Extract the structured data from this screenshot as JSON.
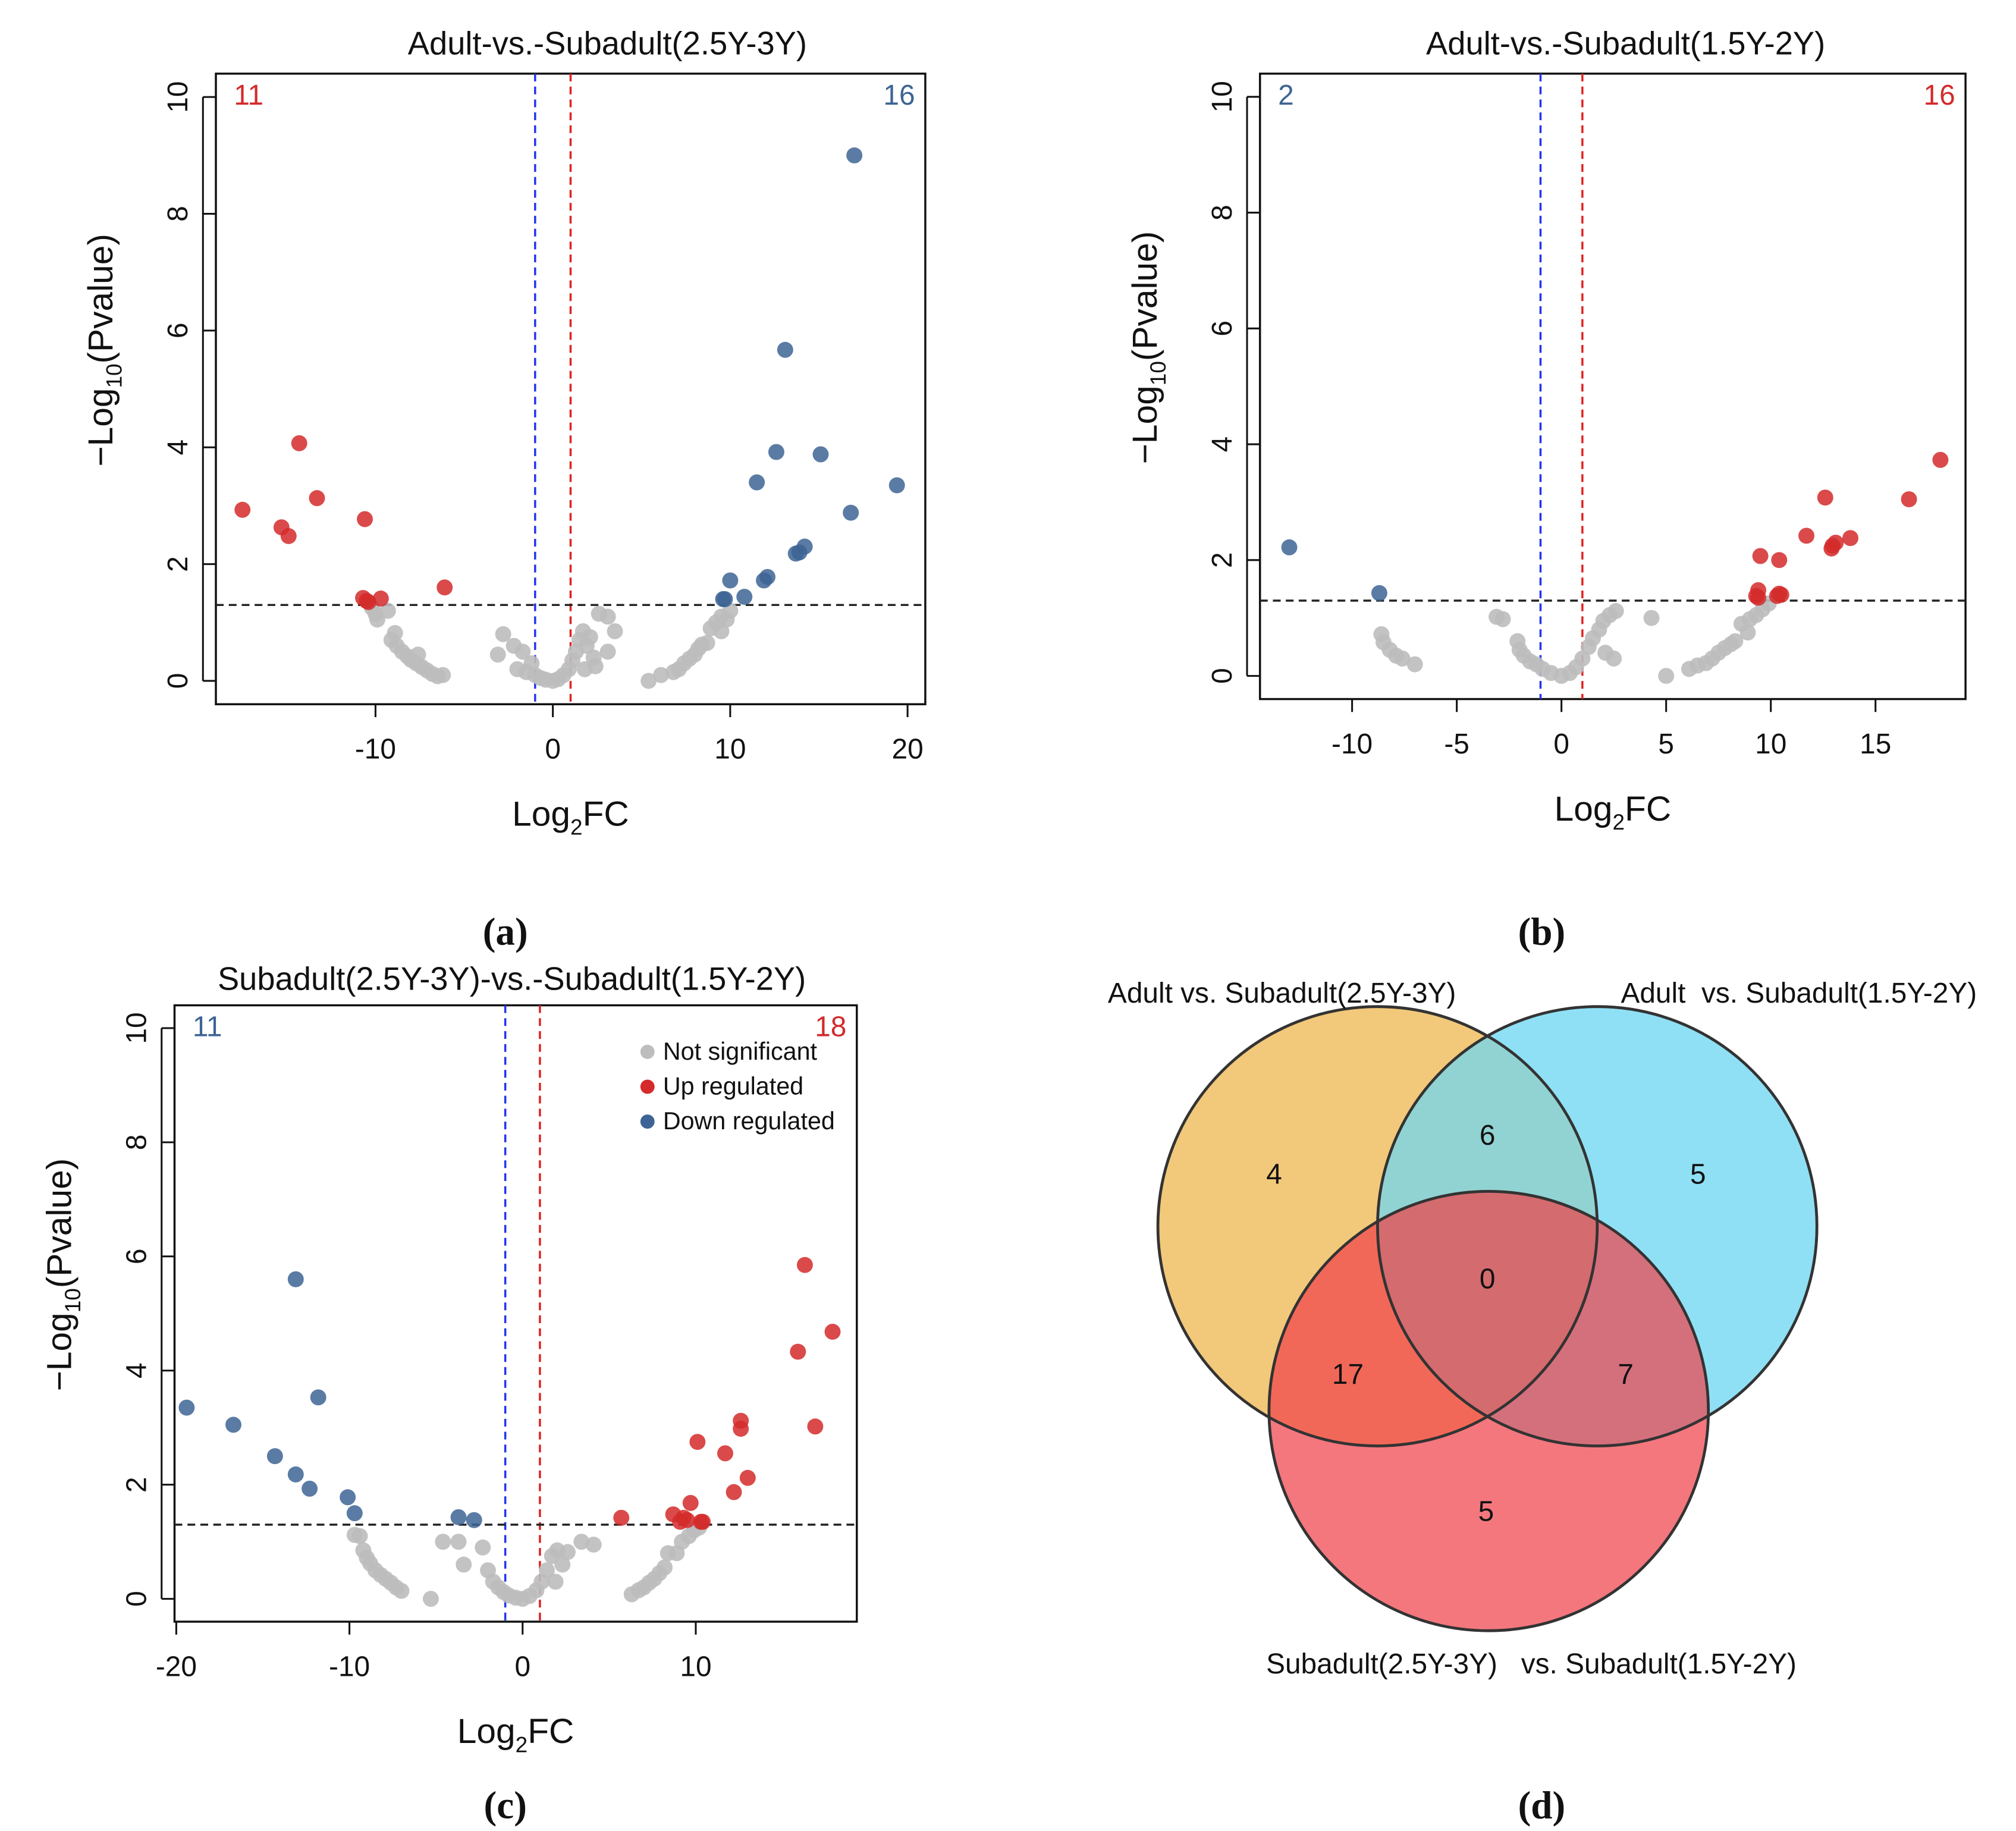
{
  "panel_labels": [
    "(a)",
    "(b)",
    "(c)",
    "(d)"
  ],
  "colors": {
    "up": "#d42a2a",
    "down": "#3d6494",
    "ns": "#bdbdbd",
    "vline_neg": "#2233ee",
    "vline_pos": "#e02020"
  },
  "chart_data": [
    {
      "type": "scatter",
      "title": "Adult-vs.-Subadult(2.5Y-3Y)",
      "xlabel": "Log2FC",
      "ylabel": "-Log10(Pvalue)",
      "xlim": [
        -19,
        21
      ],
      "ylim": [
        -0.4,
        10.4
      ],
      "xticks": [
        -10,
        0,
        10,
        20
      ],
      "yticks": [
        0,
        2,
        4,
        6,
        8,
        10
      ],
      "thresholds": {
        "log2fc": [
          -1,
          1
        ],
        "neglog10p": 1.3
      },
      "count_left": {
        "text": "11",
        "color": "#d42a2a"
      },
      "count_right": {
        "text": "16",
        "color": "#3d6494"
      },
      "series": [
        {
          "name": "Not significant",
          "color": "#bdbdbd",
          "points": [
            [
              -10.2,
              1.25
            ],
            [
              -10,
              1.15
            ],
            [
              -9.9,
              1.05
            ],
            [
              -9.3,
              1.2
            ],
            [
              -8.9,
              0.82
            ],
            [
              -9.1,
              0.7
            ],
            [
              -8.8,
              0.6
            ],
            [
              -8.5,
              0.5
            ],
            [
              -8.2,
              0.42
            ],
            [
              -8,
              0.36
            ],
            [
              -7.7,
              0.3
            ],
            [
              -7.4,
              0.24
            ],
            [
              -7.1,
              0.18
            ],
            [
              -6.8,
              0.12
            ],
            [
              -6.5,
              0.08
            ],
            [
              -6.2,
              0.1
            ],
            [
              -7.6,
              0.45
            ],
            [
              -3.1,
              0.45
            ],
            [
              -2.8,
              0.8
            ],
            [
              -2.2,
              0.6
            ],
            [
              -2,
              0.2
            ],
            [
              -1.7,
              0.5
            ],
            [
              -1.5,
              0.15
            ],
            [
              -1.2,
              0.3
            ],
            [
              -1,
              0.1
            ],
            [
              -0.7,
              0.05
            ],
            [
              -0.4,
              0.02
            ],
            [
              0,
              0
            ],
            [
              0.3,
              0.03
            ],
            [
              0.6,
              0.1
            ],
            [
              0.9,
              0.2
            ],
            [
              1.1,
              0.35
            ],
            [
              1.3,
              0.5
            ],
            [
              1.5,
              0.7
            ],
            [
              1.7,
              0.85
            ],
            [
              1.9,
              0.6
            ],
            [
              2.1,
              0.75
            ],
            [
              2.3,
              0.4
            ],
            [
              1.8,
              0.2
            ],
            [
              2.6,
              1.15
            ],
            [
              3.1,
              1.1
            ],
            [
              3.5,
              0.85
            ],
            [
              3.1,
              0.5
            ],
            [
              2.4,
              0.25
            ],
            [
              5.4,
              0
            ],
            [
              6.1,
              0.1
            ],
            [
              6.8,
              0.15
            ],
            [
              7.1,
              0.2
            ],
            [
              7.4,
              0.3
            ],
            [
              7.7,
              0.38
            ],
            [
              8,
              0.45
            ],
            [
              8.2,
              0.55
            ],
            [
              8.4,
              0.62
            ],
            [
              8.7,
              0.65
            ],
            [
              8.9,
              0.9
            ],
            [
              9.2,
              1.0
            ],
            [
              9.5,
              1.1
            ],
            [
              9.8,
              1.05
            ],
            [
              10,
              1.2
            ],
            [
              9.5,
              0.85
            ]
          ]
        },
        {
          "name": "Up regulated",
          "color": "#d42a2a",
          "points": [
            [
              -17.5,
              2.93
            ],
            [
              -15.3,
              2.63
            ],
            [
              -14.9,
              2.48
            ],
            [
              -14.3,
              4.07
            ],
            [
              -13.3,
              3.13
            ],
            [
              -10.6,
              2.77
            ],
            [
              -10.7,
              1.42
            ],
            [
              -10.5,
              1.37
            ],
            [
              -10.4,
              1.35
            ],
            [
              -9.7,
              1.41
            ],
            [
              -6.1,
              1.6
            ]
          ]
        },
        {
          "name": "Down regulated",
          "color": "#3d6494",
          "points": [
            [
              17,
              9.0
            ],
            [
              13.1,
              5.67
            ],
            [
              12.6,
              3.92
            ],
            [
              15.1,
              3.88
            ],
            [
              11.5,
              3.4
            ],
            [
              19.4,
              3.35
            ],
            [
              16.8,
              2.88
            ],
            [
              14.2,
              2.3
            ],
            [
              13.9,
              2.2
            ],
            [
              13.7,
              2.18
            ],
            [
              12.1,
              1.78
            ],
            [
              11.9,
              1.72
            ],
            [
              10,
              1.72
            ],
            [
              10.8,
              1.44
            ],
            [
              9.7,
              1.4
            ],
            [
              9.6,
              1.4
            ]
          ]
        }
      ]
    },
    {
      "type": "scatter",
      "title": "Adult-vs.-Subadult(1.5Y-2Y)",
      "xlabel": "Log2FC",
      "ylabel": "-Log10(Pvalue)",
      "xlim": [
        -14.4,
        19.3
      ],
      "ylim": [
        -0.4,
        10.4
      ],
      "xticks": [
        -10,
        -5,
        0,
        5,
        10,
        15
      ],
      "yticks": [
        0,
        2,
        4,
        6,
        8,
        10
      ],
      "thresholds": {
        "log2fc": [
          -1,
          1
        ],
        "neglog10p": 1.3
      },
      "count_left": {
        "text": "2",
        "color": "#3d6494"
      },
      "count_right": {
        "text": "16",
        "color": "#d42a2a"
      },
      "series": [
        {
          "name": "Not significant",
          "color": "#bdbdbd",
          "points": [
            [
              -8.6,
              0.72
            ],
            [
              -8.5,
              0.58
            ],
            [
              -8.2,
              0.45
            ],
            [
              -7.9,
              0.35
            ],
            [
              -7.6,
              0.3
            ],
            [
              -7,
              0.2
            ],
            [
              -3.1,
              1.02
            ],
            [
              -2.8,
              0.98
            ],
            [
              -2.1,
              0.6
            ],
            [
              -2,
              0.45
            ],
            [
              -1.8,
              0.35
            ],
            [
              -1.5,
              0.25
            ],
            [
              -1.2,
              0.2
            ],
            [
              -0.9,
              0.12
            ],
            [
              -0.5,
              0.05
            ],
            [
              0,
              0
            ],
            [
              0.4,
              0.05
            ],
            [
              0.7,
              0.15
            ],
            [
              1,
              0.3
            ],
            [
              1.3,
              0.5
            ],
            [
              1.5,
              0.65
            ],
            [
              1.8,
              0.8
            ],
            [
              2,
              0.95
            ],
            [
              2.3,
              1.05
            ],
            [
              2.6,
              1.12
            ],
            [
              2.1,
              0.4
            ],
            [
              2.5,
              0.3
            ],
            [
              4.3,
              1.0
            ],
            [
              5,
              0
            ],
            [
              6.1,
              0.12
            ],
            [
              6.5,
              0.18
            ],
            [
              6.9,
              0.22
            ],
            [
              7.2,
              0.3
            ],
            [
              7.5,
              0.4
            ],
            [
              7.8,
              0.48
            ],
            [
              8.1,
              0.55
            ],
            [
              8.3,
              0.6
            ],
            [
              8.6,
              0.9
            ],
            [
              9,
              0.98
            ],
            [
              9.3,
              1.05
            ],
            [
              9.6,
              1.15
            ],
            [
              9.9,
              1.25
            ],
            [
              8.9,
              0.75
            ]
          ]
        },
        {
          "name": "Up regulated",
          "color": "#d42a2a",
          "points": [
            [
              18.1,
              3.73
            ],
            [
              16.6,
              3.05
            ],
            [
              12.6,
              3.08
            ],
            [
              13.8,
              2.38
            ],
            [
              13.1,
              2.3
            ],
            [
              11.7,
              2.42
            ],
            [
              12.9,
              2.2
            ],
            [
              12.95,
              2.25
            ],
            [
              9.5,
              2.07
            ],
            [
              10.4,
              2.0
            ],
            [
              9.4,
              1.48
            ],
            [
              9.3,
              1.38
            ],
            [
              9.4,
              1.35
            ],
            [
              10.4,
              1.42
            ],
            [
              10.5,
              1.4
            ],
            [
              10.3,
              1.38
            ]
          ]
        },
        {
          "name": "Down regulated",
          "color": "#3d6494",
          "points": [
            [
              -13,
              2.22
            ],
            [
              -8.7,
              1.43
            ]
          ]
        }
      ]
    },
    {
      "type": "scatter",
      "title": "Subadult(2.5Y-3Y)-vs.-Subadult(1.5Y-2Y)",
      "xlabel": "Log2FC",
      "ylabel": "-Log10(Pvalue)",
      "xlim": [
        -20.1,
        19.3
      ],
      "ylim": [
        -0.4,
        10.4
      ],
      "xticks": [
        -20,
        -10,
        0,
        10
      ],
      "yticks": [
        0,
        2,
        4,
        6,
        8,
        10
      ],
      "thresholds": {
        "log2fc": [
          -1,
          1
        ],
        "neglog10p": 1.3
      },
      "count_left": {
        "text": "11",
        "color": "#3d6494"
      },
      "count_right": {
        "text": "18",
        "color": "#d42a2a"
      },
      "legend": {
        "position": "top-right",
        "items": [
          "Not significant",
          "Up regulated",
          "Down regulated"
        ]
      },
      "series": [
        {
          "name": "Not significant",
          "color": "#bdbdbd",
          "points": [
            [
              -9.7,
              1.12
            ],
            [
              -9.4,
              1.1
            ],
            [
              -9.2,
              0.85
            ],
            [
              -9,
              0.72
            ],
            [
              -8.8,
              0.62
            ],
            [
              -8.5,
              0.5
            ],
            [
              -8.2,
              0.42
            ],
            [
              -7.9,
              0.35
            ],
            [
              -7.6,
              0.28
            ],
            [
              -7.3,
              0.2
            ],
            [
              -7,
              0.14
            ],
            [
              -5.3,
              0
            ],
            [
              -4.6,
              1.0
            ],
            [
              -3.7,
              1.0
            ],
            [
              -3.4,
              0.6
            ],
            [
              -2.3,
              0.9
            ],
            [
              -2,
              0.5
            ],
            [
              -1.7,
              0.3
            ],
            [
              -1.4,
              0.2
            ],
            [
              -1.1,
              0.12
            ],
            [
              -0.8,
              0.06
            ],
            [
              -0.4,
              0.02
            ],
            [
              0,
              0
            ],
            [
              0.4,
              0.05
            ],
            [
              0.8,
              0.15
            ],
            [
              1.1,
              0.3
            ],
            [
              1.4,
              0.5
            ],
            [
              1.7,
              0.75
            ],
            [
              2,
              0.85
            ],
            [
              2.3,
              0.6
            ],
            [
              2.6,
              0.82
            ],
            [
              3.4,
              1.0
            ],
            [
              4.1,
              0.95
            ],
            [
              1.9,
              0.3
            ],
            [
              6.3,
              0.08
            ],
            [
              6.7,
              0.15
            ],
            [
              7,
              0.2
            ],
            [
              7.3,
              0.28
            ],
            [
              7.6,
              0.35
            ],
            [
              7.9,
              0.45
            ],
            [
              8.2,
              0.55
            ],
            [
              8.4,
              0.8
            ],
            [
              8.9,
              0.8
            ],
            [
              9.2,
              1.0
            ],
            [
              9.6,
              1.1
            ],
            [
              9.9,
              1.2
            ],
            [
              10.2,
              1.25
            ]
          ]
        },
        {
          "name": "Up regulated",
          "color": "#d42a2a",
          "points": [
            [
              16.3,
              5.85
            ],
            [
              17.9,
              4.68
            ],
            [
              15.9,
              4.33
            ],
            [
              16.9,
              3.02
            ],
            [
              12.6,
              3.12
            ],
            [
              12.6,
              2.98
            ],
            [
              10.1,
              2.75
            ],
            [
              11.7,
              2.55
            ],
            [
              13,
              2.12
            ],
            [
              12.2,
              1.87
            ],
            [
              9.7,
              1.68
            ],
            [
              8.7,
              1.48
            ],
            [
              9.3,
              1.42
            ],
            [
              9.1,
              1.35
            ],
            [
              10.3,
              1.35
            ],
            [
              10.4,
              1.35
            ],
            [
              5.7,
              1.42
            ],
            [
              9.5,
              1.38
            ]
          ]
        },
        {
          "name": "Down regulated",
          "color": "#3d6494",
          "points": [
            [
              -19.4,
              3.35
            ],
            [
              -16.7,
              3.05
            ],
            [
              -14.3,
              2.5
            ],
            [
              -13.1,
              5.6
            ],
            [
              -13.1,
              2.18
            ],
            [
              -12.3,
              1.93
            ],
            [
              -11.8,
              3.53
            ],
            [
              -10.1,
              1.78
            ],
            [
              -9.7,
              1.5
            ],
            [
              -3.7,
              1.43
            ],
            [
              -2.8,
              1.38
            ]
          ]
        }
      ]
    },
    {
      "type": "venn",
      "sets": [
        "Adult vs. Subadult(2.5Y-3Y)",
        "Adult  vs. Subadult(1.5Y-2Y)",
        "Subadult(2.5Y-3Y)   vs. Subadult(1.5Y-2Y)"
      ],
      "regions": {
        "A_only": "4",
        "B_only": "5",
        "C_only": "5",
        "AB": "6",
        "AC": "17",
        "BC": "7",
        "ABC": "0"
      },
      "colors": {
        "A": "#f2c87a",
        "B": "#8fe0f5",
        "C": "#f4777e",
        "AB": "#91d3d2",
        "AC": "#f26858",
        "BC": "#d4707c",
        "ABC": "#d46b6e"
      }
    }
  ]
}
